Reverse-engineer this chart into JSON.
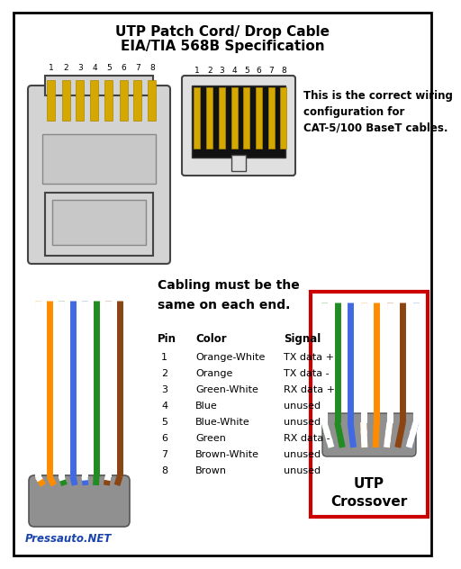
{
  "title_line1": "UTP Patch Cord/ Drop Cable",
  "title_line2": "EIA/TIA 568B Specification",
  "bg_color": "#ffffff",
  "border_color": "#000000",
  "pin_labels": [
    "1",
    "2",
    "3",
    "4",
    "5",
    "6",
    "7",
    "8"
  ],
  "pin_data": [
    {
      "pin": "1",
      "color": "Orange-White",
      "signal": "TX data +"
    },
    {
      "pin": "2",
      "color": "Orange",
      "signal": "TX data -"
    },
    {
      "pin": "3",
      "color": "Green-White",
      "signal": "RX data +"
    },
    {
      "pin": "4",
      "color": "Blue",
      "signal": "unused"
    },
    {
      "pin": "5",
      "color": "Blue-White",
      "signal": "unused"
    },
    {
      "pin": "6",
      "color": "Green",
      "signal": "RX data -"
    },
    {
      "pin": "7",
      "color": "Brown-White",
      "signal": "unused"
    },
    {
      "pin": "8",
      "color": "Brown",
      "signal": "unused"
    }
  ],
  "correct_wiring_text": [
    "This is the correct wiring",
    "configuration for",
    "CAT-5/100 BaseT cables."
  ],
  "cabling_text": [
    "Cabling must be the",
    "same on each end."
  ],
  "utp_label_line1": "UTP",
  "utp_label_line2": "Crossover",
  "pressauto_text": "Pressauto.NET",
  "red_border_color": "#cc0000",
  "connector_body_color": "#d3d3d3",
  "tab_color": "#b8b8b8",
  "jack_body_color": "#e0e0e0",
  "jack_dark": "#111111",
  "sheath_color": "#909090",
  "pin_gold": "#d4a800",
  "wire_defs_left": [
    [
      "#ff8c00",
      "#ffffff"
    ],
    [
      "#ff8c00",
      null
    ],
    [
      "#228b22",
      "#ffffff"
    ],
    [
      "#4169e1",
      null
    ],
    [
      "#4169e1",
      "#ffffff"
    ],
    [
      "#228b22",
      null
    ],
    [
      "#8b4513",
      "#ffffff"
    ],
    [
      "#8b4513",
      null
    ]
  ],
  "wire_defs_right": [
    [
      "#228b22",
      "#ffffff"
    ],
    [
      "#228b22",
      null
    ],
    [
      "#4169e1",
      null
    ],
    [
      "#ff8c00",
      "#ffffff"
    ],
    [
      "#ff8c00",
      null
    ],
    [
      "#8b4513",
      "#ffffff"
    ],
    [
      "#8b4513",
      null
    ],
    [
      "#4169e1",
      "#ffffff"
    ]
  ]
}
